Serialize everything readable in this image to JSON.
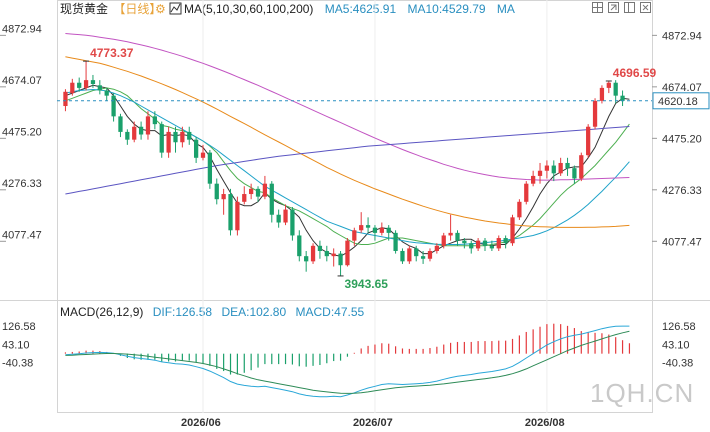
{
  "header": {
    "instrument": "现货黄金",
    "period": "【日线】",
    "ma_label": "MA(5,10,30,60,100,200)",
    "ma5": "MA5:4625.91",
    "ma10": "MA10:4529.79",
    "ma_more": "MA"
  },
  "macd_header": {
    "label": "MACD(26,12,9)",
    "dif": "DIF:126.58",
    "dea": "DEA:102.80",
    "macd": "MACD:47.55"
  },
  "annotations": {
    "high_left": "4773.37",
    "low": "3943.65",
    "high_right": "4696.59",
    "last_price": "4620.18"
  },
  "watermark": "1QH.CN",
  "colors": {
    "up": "#e4393c",
    "down": "#1aa06b",
    "ma5": "#333333",
    "ma10": "#4caf50",
    "ma30": "#1fa3c9",
    "ma60": "#e88a1a",
    "ma100": "#c254c2",
    "ma200": "#5b55c2",
    "dif": "#2aa7d8",
    "dea": "#2e8b57",
    "last_line": "#2a8fc0",
    "annot": "#e04848",
    "low_annot": "#2ea05a",
    "header_accent": "#e8a33a",
    "header_blue": "#2a8fc0"
  },
  "icons": [
    "gear-icon",
    "crosshair-icon",
    "maximize-icon",
    "restore-icon",
    "close-icon"
  ],
  "chart_data": {
    "type": "candlestick",
    "price_ticks": [
      "4872.94",
      "4674.07",
      "4475.20",
      "4276.33",
      "4077.47"
    ],
    "price_range": [
      3870,
      4940
    ],
    "macd_ticks": [
      "126.58",
      "43.10",
      "-40.38"
    ],
    "macd_range": [
      -250,
      155
    ],
    "x_labels": [
      "2026/06",
      "2026/07",
      "2026/08"
    ],
    "x_label_index": [
      20,
      45,
      70
    ],
    "candles": [
      [
        4600,
        4655,
        4580,
        4665
      ],
      [
        4650,
        4690,
        4640,
        4705
      ],
      [
        4690,
        4670,
        4655,
        4710
      ],
      [
        4670,
        4700,
        4660,
        4773
      ],
      [
        4700,
        4685,
        4670,
        4720
      ],
      [
        4680,
        4660,
        4645,
        4700
      ],
      [
        4660,
        4640,
        4620,
        4670
      ],
      [
        4640,
        4560,
        4540,
        4650
      ],
      [
        4560,
        4500,
        4480,
        4570
      ],
      [
        4500,
        4470,
        4450,
        4510
      ],
      [
        4470,
        4520,
        4460,
        4540
      ],
      [
        4520,
        4490,
        4470,
        4540
      ],
      [
        4490,
        4560,
        4470,
        4580
      ],
      [
        4560,
        4530,
        4510,
        4580
      ],
      [
        4530,
        4420,
        4400,
        4540
      ],
      [
        4420,
        4500,
        4400,
        4520
      ],
      [
        4500,
        4460,
        4420,
        4520
      ],
      [
        4460,
        4500,
        4440,
        4520
      ],
      [
        4500,
        4470,
        4450,
        4520
      ],
      [
        4470,
        4400,
        4380,
        4480
      ],
      [
        4400,
        4420,
        4390,
        4450
      ],
      [
        4420,
        4300,
        4280,
        4430
      ],
      [
        4300,
        4240,
        4220,
        4320
      ],
      [
        4240,
        4260,
        4180,
        4280
      ],
      [
        4260,
        4120,
        4100,
        4280
      ],
      [
        4120,
        4230,
        4100,
        4250
      ],
      [
        4230,
        4260,
        4220,
        4290
      ],
      [
        4260,
        4280,
        4240,
        4300
      ],
      [
        4280,
        4250,
        4230,
        4290
      ],
      [
        4250,
        4300,
        4240,
        4330
      ],
      [
        4300,
        4180,
        4150,
        4310
      ],
      [
        4180,
        4150,
        4130,
        4200
      ],
      [
        4150,
        4200,
        4140,
        4220
      ],
      [
        4200,
        4100,
        4080,
        4210
      ],
      [
        4100,
        4020,
        4000,
        4120
      ],
      [
        4020,
        4000,
        3960,
        4040
      ],
      [
        4000,
        4060,
        3990,
        4070
      ],
      [
        4060,
        4040,
        4010,
        4080
      ],
      [
        4040,
        4020,
        4000,
        4060
      ],
      [
        4020,
        4030,
        3980,
        4050
      ],
      [
        4030,
        3985,
        3943,
        4040
      ],
      [
        3985,
        4080,
        3980,
        4090
      ],
      [
        4080,
        4120,
        4060,
        4130
      ],
      [
        4120,
        4140,
        4110,
        4190
      ],
      [
        4140,
        4130,
        4110,
        4170
      ],
      [
        4130,
        4110,
        4080,
        4140
      ],
      [
        4110,
        4130,
        4100,
        4150
      ],
      [
        4130,
        4110,
        4080,
        4140
      ],
      [
        4110,
        4040,
        4030,
        4120
      ],
      [
        4040,
        4000,
        3990,
        4050
      ],
      [
        4000,
        4050,
        3990,
        4060
      ],
      [
        4050,
        4020,
        4000,
        4060
      ],
      [
        4020,
        4010,
        3990,
        4040
      ],
      [
        4010,
        4040,
        4000,
        4050
      ],
      [
        4040,
        4060,
        4030,
        4070
      ],
      [
        4060,
        4100,
        4050,
        4110
      ],
      [
        4100,
        4110,
        4080,
        4180
      ],
      [
        4110,
        4080,
        4060,
        4120
      ],
      [
        4080,
        4070,
        4050,
        4090
      ],
      [
        4070,
        4050,
        4030,
        4080
      ],
      [
        4050,
        4080,
        4040,
        4090
      ],
      [
        4080,
        4060,
        4040,
        4090
      ],
      [
        4060,
        4050,
        4040,
        4080
      ],
      [
        4050,
        4090,
        4040,
        4100
      ],
      [
        4090,
        4070,
        4050,
        4100
      ],
      [
        4070,
        4170,
        4060,
        4180
      ],
      [
        4170,
        4230,
        4160,
        4240
      ],
      [
        4230,
        4300,
        4220,
        4310
      ],
      [
        4300,
        4330,
        4290,
        4350
      ],
      [
        4330,
        4350,
        4300,
        4380
      ],
      [
        4350,
        4370,
        4320,
        4390
      ],
      [
        4370,
        4340,
        4310,
        4390
      ],
      [
        4340,
        4380,
        4330,
        4400
      ],
      [
        4380,
        4360,
        4330,
        4400
      ],
      [
        4360,
        4320,
        4300,
        4370
      ],
      [
        4320,
        4410,
        4310,
        4420
      ],
      [
        4410,
        4520,
        4400,
        4530
      ],
      [
        4520,
        4620,
        4510,
        4630
      ],
      [
        4620,
        4670,
        4610,
        4680
      ],
      [
        4670,
        4690,
        4650,
        4697
      ],
      [
        4690,
        4640,
        4610,
        4700
      ],
      [
        4640,
        4620,
        4600,
        4660
      ]
    ],
    "series": [
      {
        "name": "MA5",
        "values": [
          4640,
          4650,
          4660,
          4670,
          4680,
          4675,
          4670,
          4640,
          4600,
          4560,
          4530,
          4510,
          4505,
          4505,
          4485,
          4490,
          4485,
          4490,
          4485,
          4455,
          4440,
          4405,
          4355,
          4310,
          4265,
          4225,
          4215,
          4215,
          4230,
          4265,
          4240,
          4225,
          4215,
          4195,
          4170,
          4120,
          4080,
          4050,
          4035,
          4025,
          4020,
          4035,
          4055,
          4080,
          4110,
          4120,
          4130,
          4125,
          4100,
          4075,
          4060,
          4050,
          4030,
          4030,
          4045,
          4060,
          4070,
          4080,
          4085,
          4085,
          4070,
          4065,
          4060,
          4065,
          4065,
          4090,
          4125,
          4165,
          4210,
          4260,
          4300,
          4330,
          4345,
          4360,
          4365,
          4365,
          4400,
          4440,
          4500,
          4560,
          4610,
          4630,
          4626
        ]
      },
      {
        "name": "MA10",
        "values": [
          4620,
          4630,
          4640,
          4650,
          4660,
          4665,
          4670,
          4665,
          4655,
          4640,
          4615,
          4590,
          4570,
          4550,
          4525,
          4520,
          4510,
          4505,
          4495,
          4480,
          4465,
          4445,
          4420,
          4385,
          4350,
          4320,
          4300,
          4285,
          4270,
          4265,
          4245,
          4230,
          4215,
          4205,
          4195,
          4180,
          4165,
          4150,
          4135,
          4115,
          4100,
          4085,
          4070,
          4065,
          4065,
          4070,
          4080,
          4090,
          4090,
          4090,
          4085,
          4080,
          4075,
          4070,
          4065,
          4060,
          4060,
          4060,
          4060,
          4060,
          4060,
          4060,
          4065,
          4070,
          4075,
          4085,
          4100,
          4120,
          4140,
          4165,
          4195,
          4225,
          4255,
          4280,
          4300,
          4320,
          4345,
          4370,
          4400,
          4430,
          4460,
          4495,
          4530
        ]
      },
      {
        "name": "MA30",
        "values": [
          4650,
          4655,
          4660,
          4662,
          4664,
          4662,
          4658,
          4650,
          4640,
          4628,
          4615,
          4600,
          4585,
          4570,
          4555,
          4540,
          4525,
          4510,
          4495,
          4480,
          4465,
          4448,
          4430,
          4410,
          4390,
          4370,
          4350,
          4330,
          4310,
          4290,
          4275,
          4260,
          4245,
          4230,
          4215,
          4200,
          4185,
          4170,
          4155,
          4145,
          4135,
          4125,
          4115,
          4110,
          4105,
          4100,
          4095,
          4090,
          4085,
          4080,
          4075,
          4072,
          4070,
          4068,
          4066,
          4065,
          4065,
          4065,
          4066,
          4068,
          4070,
          4072,
          4075,
          4078,
          4082,
          4086,
          4090,
          4095,
          4100,
          4108,
          4118,
          4130,
          4145,
          4160,
          4178,
          4198,
          4220,
          4245,
          4270,
          4298,
          4325,
          4355,
          4385
        ]
      },
      {
        "name": "MA60",
        "values": [
          4790,
          4785,
          4780,
          4775,
          4770,
          4765,
          4758,
          4750,
          4742,
          4734,
          4725,
          4716,
          4706,
          4696,
          4686,
          4675,
          4664,
          4652,
          4640,
          4628,
          4615,
          4602,
          4588,
          4574,
          4560,
          4546,
          4532,
          4518,
          4503,
          4489,
          4475,
          4461,
          4447,
          4433,
          4419,
          4405,
          4391,
          4377,
          4363,
          4350,
          4337,
          4325,
          4313,
          4302,
          4291,
          4280,
          4270,
          4260,
          4250,
          4240,
          4231,
          4222,
          4213,
          4205,
          4197,
          4190,
          4183,
          4177,
          4171,
          4166,
          4161,
          4156,
          4152,
          4148,
          4145,
          4142,
          4139,
          4137,
          4135,
          4134,
          4133,
          4132,
          4131,
          4131,
          4131,
          4131,
          4132,
          4132,
          4133,
          4134,
          4135,
          4137,
          4139
        ]
      },
      {
        "name": "MA100",
        "values": [
          4880,
          4878,
          4876,
          4873,
          4870,
          4866,
          4862,
          4858,
          4853,
          4848,
          4842,
          4836,
          4830,
          4823,
          4816,
          4808,
          4800,
          4792,
          4783,
          4774,
          4765,
          4755,
          4745,
          4735,
          4724,
          4713,
          4702,
          4691,
          4680,
          4668,
          4656,
          4644,
          4632,
          4620,
          4608,
          4596,
          4584,
          4572,
          4560,
          4548,
          4536,
          4524,
          4512,
          4500,
          4488,
          4476,
          4465,
          4454,
          4443,
          4432,
          4422,
          4412,
          4402,
          4393,
          4384,
          4375,
          4367,
          4359,
          4352,
          4346,
          4340,
          4335,
          4330,
          4326,
          4323,
          4320,
          4318,
          4316,
          4315,
          4314,
          4314,
          4314,
          4315,
          4315,
          4316,
          4317,
          4318,
          4319,
          4320,
          4321,
          4322,
          4323,
          4324
        ]
      },
      {
        "name": "MA200",
        "values": [
          4260,
          4265,
          4270,
          4275,
          4280,
          4285,
          4290,
          4295,
          4300,
          4305,
          4310,
          4315,
          4320,
          4325,
          4330,
          4335,
          4340,
          4345,
          4350,
          4355,
          4360,
          4365,
          4370,
          4374,
          4378,
          4382,
          4386,
          4390,
          4394,
          4398,
          4402,
          4406,
          4409,
          4412,
          4415,
          4418,
          4421,
          4424,
          4427,
          4430,
          4433,
          4436,
          4439,
          4442,
          4445,
          4447,
          4449,
          4451,
          4453,
          4455,
          4457,
          4459,
          4461,
          4463,
          4465,
          4467,
          4469,
          4471,
          4473,
          4475,
          4477,
          4479,
          4481,
          4483,
          4485,
          4487,
          4489,
          4491,
          4493,
          4495,
          4497,
          4499,
          4501,
          4503,
          4505,
          4507,
          4509,
          4511,
          4513,
          4515,
          4517,
          4519,
          4521
        ]
      }
    ],
    "macd": {
      "dif": [
        -5,
        -3,
        0,
        3,
        5,
        6,
        5,
        2,
        -5,
        -12,
        -18,
        -22,
        -26,
        -30,
        -38,
        -42,
        -46,
        -48,
        -52,
        -60,
        -68,
        -80,
        -95,
        -110,
        -128,
        -140,
        -146,
        -150,
        -152,
        -150,
        -156,
        -162,
        -168,
        -175,
        -185,
        -192,
        -196,
        -198,
        -198,
        -196,
        -198,
        -190,
        -180,
        -168,
        -158,
        -150,
        -142,
        -138,
        -140,
        -142,
        -140,
        -138,
        -136,
        -132,
        -126,
        -118,
        -110,
        -104,
        -100,
        -96,
        -90,
        -86,
        -82,
        -76,
        -70,
        -58,
        -40,
        -20,
        0,
        20,
        40,
        55,
        68,
        78,
        85,
        90,
        98,
        106,
        115,
        122,
        126,
        127,
        127
      ],
      "dea": [
        -8,
        -7,
        -5,
        -4,
        -2,
        0,
        1,
        1,
        0,
        -2,
        -5,
        -8,
        -12,
        -16,
        -20,
        -24,
        -28,
        -32,
        -36,
        -40,
        -45,
        -52,
        -60,
        -70,
        -80,
        -92,
        -102,
        -112,
        -120,
        -126,
        -132,
        -138,
        -144,
        -150,
        -156,
        -162,
        -168,
        -172,
        -176,
        -179,
        -182,
        -183,
        -182,
        -180,
        -176,
        -171,
        -166,
        -161,
        -157,
        -154,
        -151,
        -149,
        -147,
        -145,
        -142,
        -139,
        -135,
        -131,
        -127,
        -123,
        -119,
        -115,
        -111,
        -106,
        -100,
        -92,
        -82,
        -70,
        -56,
        -42,
        -28,
        -14,
        0,
        14,
        26,
        38,
        48,
        58,
        68,
        78,
        88,
        96,
        103
      ],
      "hist": [
        6,
        8,
        10,
        14,
        14,
        12,
        8,
        2,
        -10,
        -20,
        -26,
        -28,
        -28,
        -28,
        -36,
        -36,
        -36,
        -32,
        -32,
        -40,
        -46,
        -56,
        -70,
        -80,
        -96,
        -96,
        -88,
        -76,
        -64,
        -48,
        -48,
        -48,
        -48,
        -50,
        -58,
        -60,
        -56,
        -52,
        -44,
        -34,
        -32,
        -14,
        4,
        24,
        36,
        42,
        48,
        46,
        34,
        24,
        22,
        22,
        22,
        26,
        32,
        42,
        50,
        54,
        54,
        54,
        58,
        58,
        58,
        60,
        60,
        68,
        84,
        100,
        112,
        124,
        136,
        138,
        136,
        128,
        118,
        104,
        100,
        96,
        94,
        88,
        76,
        62,
        48
      ]
    }
  }
}
